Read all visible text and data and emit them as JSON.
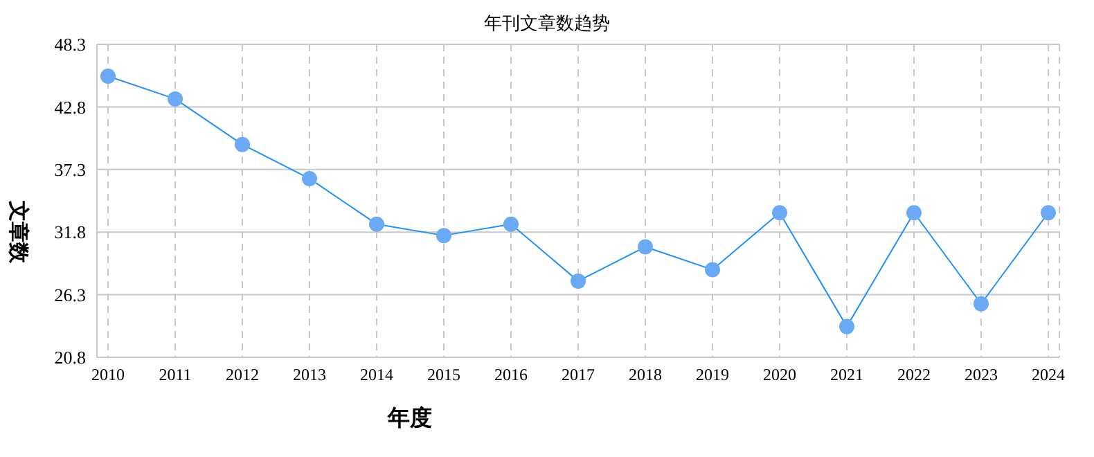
{
  "chart_data": {
    "type": "line",
    "title": "年刊文章数趋势",
    "xlabel": "年度",
    "ylabel": "文章数",
    "categories": [
      "2010",
      "2011",
      "2012",
      "2013",
      "2014",
      "2015",
      "2016",
      "2017",
      "2018",
      "2019",
      "2020",
      "2021",
      "2022",
      "2023",
      "2024"
    ],
    "series": [
      {
        "color": "#1e90ff",
        "values": [
          45.5,
          43.5,
          39.5,
          36.5,
          32.5,
          31.5,
          32.5,
          27.5,
          30.5,
          28.5,
          33.5,
          23.5,
          33.5,
          25.5,
          33.5
        ]
      }
    ],
    "ylim": [
      20.8,
      48.3
    ],
    "yticks": [
      20.8,
      26.3,
      31.8,
      37.3,
      42.8,
      48.3
    ],
    "grid": true,
    "marker": "circle",
    "line_style": "solid"
  }
}
